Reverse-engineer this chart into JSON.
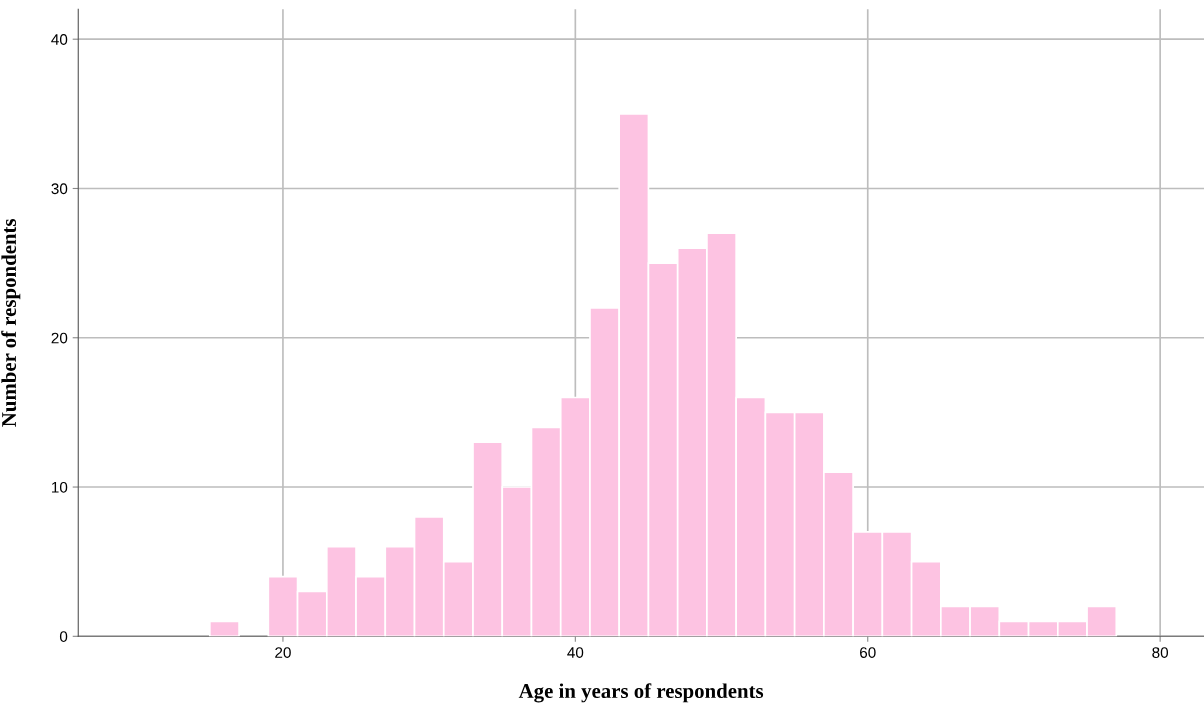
{
  "chart_data": {
    "type": "histogram",
    "xlabel": "Age in years of respondents",
    "ylabel": "Number of respondents",
    "bins": [
      15,
      17,
      19,
      21,
      23,
      25,
      27,
      29,
      31,
      33,
      35,
      37,
      39,
      41,
      43,
      45,
      47,
      49,
      51,
      53,
      55,
      57,
      59,
      61,
      63,
      65,
      67,
      69,
      71,
      73,
      75,
      77
    ],
    "values": [
      1,
      0,
      4,
      3,
      6,
      4,
      6,
      8,
      5,
      13,
      10,
      14,
      16,
      22,
      35,
      25,
      26,
      27,
      16,
      15,
      15,
      11,
      7,
      7,
      5,
      2,
      2,
      1,
      1,
      1,
      2
    ],
    "color": "#fdc3e2",
    "xlim": [
      6,
      83
    ],
    "xticks": [
      20,
      40,
      60,
      80
    ],
    "ylim": [
      0,
      42
    ],
    "yticks": [
      0,
      10,
      20,
      30,
      40
    ],
    "grid": true
  }
}
